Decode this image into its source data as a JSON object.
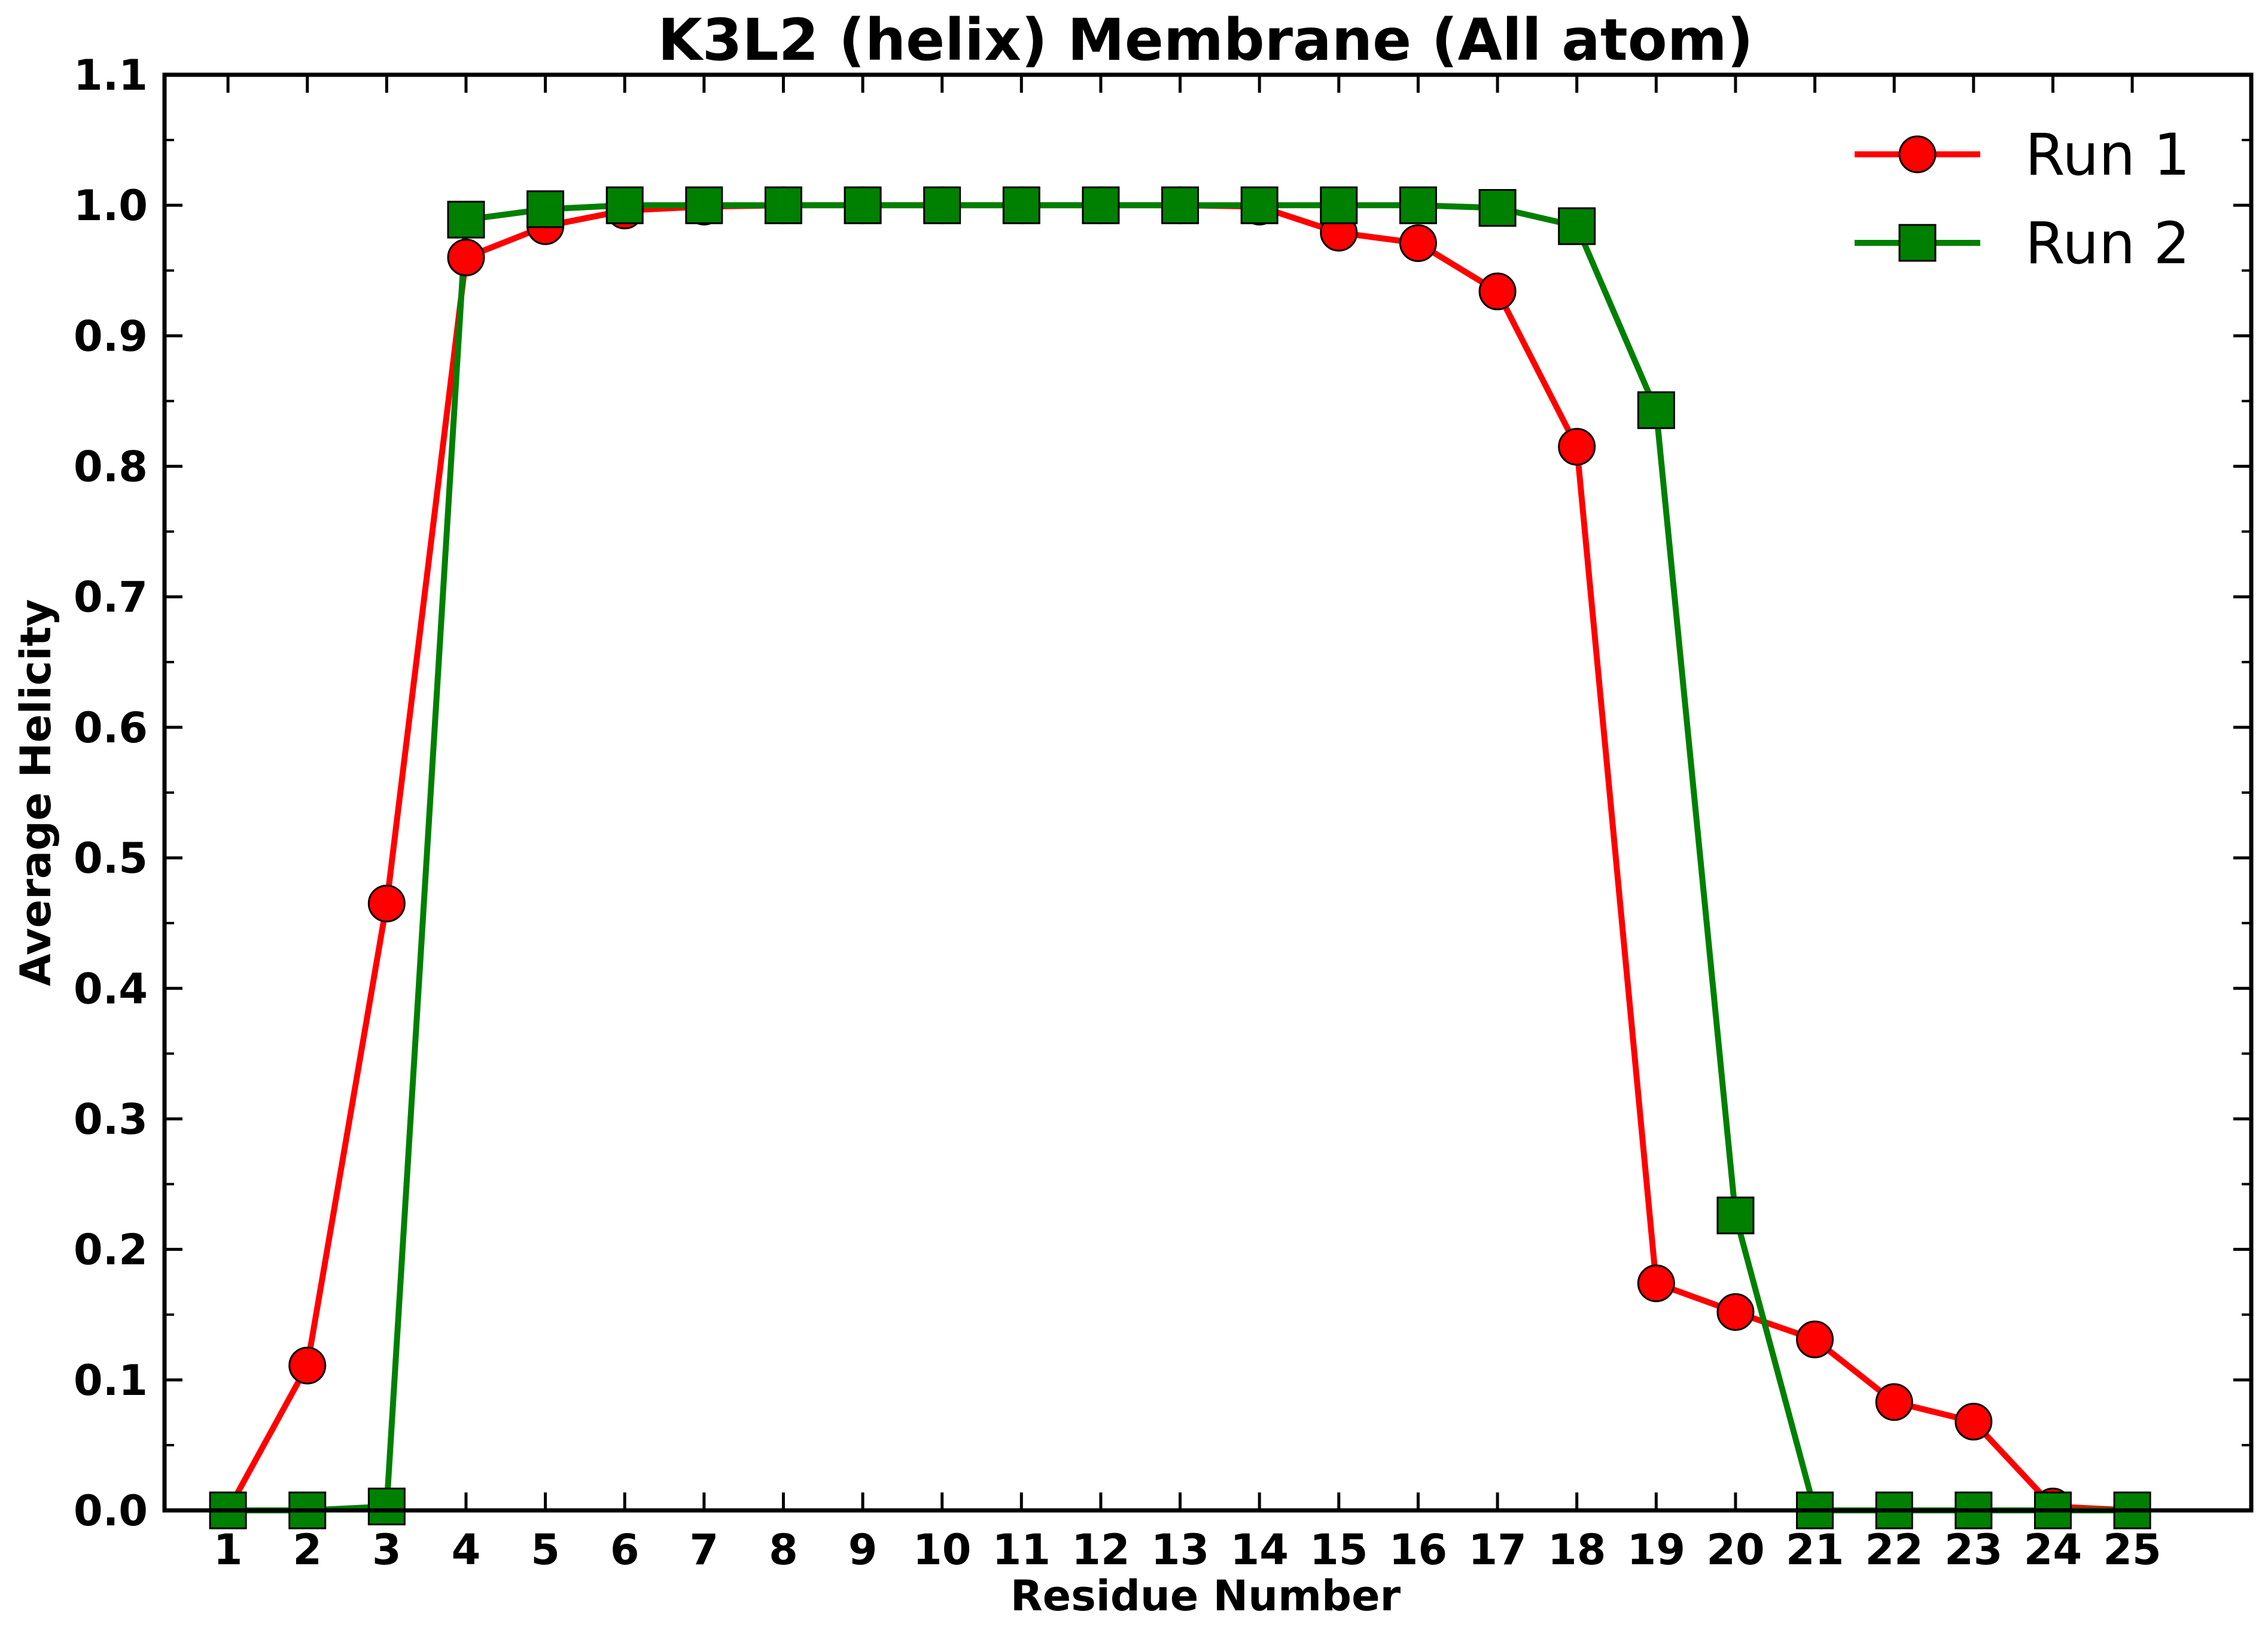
{
  "chart_data": {
    "type": "line",
    "title": "K3L2 (helix) Membrane (All atom)",
    "xlabel": "Residue Number",
    "ylabel": "Average Helicity",
    "x": [
      1,
      2,
      3,
      4,
      5,
      6,
      7,
      8,
      9,
      10,
      11,
      12,
      13,
      14,
      15,
      16,
      17,
      18,
      19,
      20,
      21,
      22,
      23,
      24,
      25
    ],
    "xlim": [
      0.2,
      26.5
    ],
    "ylim": [
      0.0,
      1.1
    ],
    "x_ticks": [
      "1",
      "2",
      "3",
      "4",
      "5",
      "6",
      "7",
      "8",
      "9",
      "10",
      "11",
      "12",
      "13",
      "14",
      "15",
      "16",
      "17",
      "18",
      "19",
      "20",
      "21",
      "22",
      "23",
      "24",
      "25"
    ],
    "y_ticks": [
      "0.0",
      "0.1",
      "0.2",
      "0.3",
      "0.4",
      "0.5",
      "0.6",
      "0.7",
      "0.8",
      "0.9",
      "1.0",
      "1.1"
    ],
    "y_tick_values": [
      0.0,
      0.1,
      0.2,
      0.3,
      0.4,
      0.5,
      0.6,
      0.7,
      0.8,
      0.9,
      1.0,
      1.1
    ],
    "grid": false,
    "legend_position": "top-right",
    "series": [
      {
        "name": "Run 1",
        "color": "#ff0000",
        "marker": "circle",
        "values": [
          0.0,
          0.111,
          0.465,
          0.96,
          0.984,
          0.996,
          0.999,
          1.0,
          1.0,
          1.0,
          1.0,
          1.0,
          1.0,
          0.999,
          0.979,
          0.971,
          0.934,
          0.815,
          0.174,
          0.152,
          0.131,
          0.083,
          0.068,
          0.003,
          0.0
        ]
      },
      {
        "name": "Run 2",
        "color": "#008000",
        "marker": "square",
        "values": [
          0.0,
          0.0,
          0.003,
          0.989,
          0.997,
          1.0,
          1.0,
          1.0,
          1.0,
          1.0,
          1.0,
          1.0,
          1.0,
          1.0,
          1.0,
          1.0,
          0.998,
          0.984,
          0.843,
          0.226,
          0.0,
          0.0,
          0.0,
          0.0,
          0.0
        ]
      }
    ]
  }
}
